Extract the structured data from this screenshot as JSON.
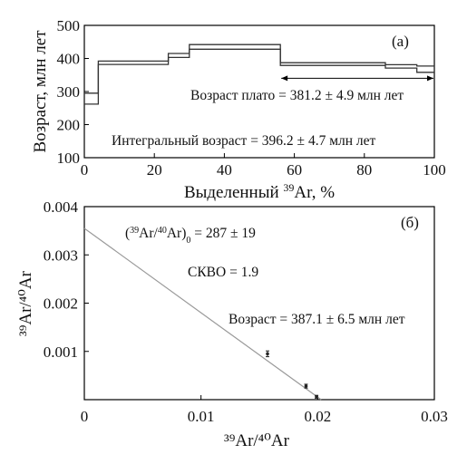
{
  "chart_data": [
    {
      "type": "line",
      "panel_label": "(a)",
      "xlabel_prefix": "Выделенный ",
      "xlabel_isotope": "39",
      "xlabel_suffix": "Ar, %",
      "ylabel": "Возраст, млн лет",
      "xlim": [
        0,
        100
      ],
      "ylim": [
        100,
        500
      ],
      "x_ticks": [
        0,
        20,
        40,
        60,
        80,
        100
      ],
      "y_ticks": [
        100,
        200,
        300,
        400,
        500
      ],
      "series": [
        {
          "steps": [
            {
              "x0": 0,
              "x1": 4,
              "y_low": 262,
              "y_high": 295
            },
            {
              "x0": 4,
              "x1": 24,
              "y_low": 382,
              "y_high": 392
            },
            {
              "x0": 24,
              "x1": 30,
              "y_low": 403,
              "y_high": 415
            },
            {
              "x0": 30,
              "x1": 56,
              "y_low": 428,
              "y_high": 442
            },
            {
              "x0": 56,
              "x1": 86,
              "y_low": 379,
              "y_high": 387
            },
            {
              "x0": 86,
              "x1": 95,
              "y_low": 371,
              "y_high": 381
            },
            {
              "x0": 95,
              "x1": 100,
              "y_low": 358,
              "y_high": 377
            }
          ]
        }
      ],
      "plateau": {
        "x0": 56,
        "x1": 100,
        "y": 340
      },
      "annotations": {
        "plateau": "Возраст плато = 381.2 ± 4.9 млн лет",
        "integral": "Интегральный возраст = 396.2 ± 4.7 млн лет"
      }
    },
    {
      "type": "scatter",
      "panel_label": "(б)",
      "xlabel": "³⁹Ar/⁴⁰Ar",
      "ylabel": "³⁹Ar/⁴⁰Ar",
      "xlim": [
        0,
        0.03
      ],
      "ylim": [
        0,
        0.004
      ],
      "x_ticks": [
        "0",
        "0.01",
        "0.02",
        "0.03"
      ],
      "y_ticks": [
        "0.001",
        "0.002",
        "0.003",
        "0.004"
      ],
      "x_tick_values": [
        0,
        0.01,
        0.02,
        0.03
      ],
      "y_tick_values": [
        0.001,
        0.002,
        0.003,
        0.004
      ],
      "points": [
        {
          "x": 0.0157,
          "y": 0.00095,
          "err": 6e-05
        },
        {
          "x": 0.019,
          "y": 0.00028,
          "err": 4e-05
        },
        {
          "x": 0.0199,
          "y": 6e-05,
          "err": 3e-05
        }
      ],
      "fit_line": {
        "x": [
          0,
          0.0203
        ],
        "y": [
          0.00355,
          0
        ]
      },
      "line_color": "#999999",
      "annotations": {
        "intercept_prefix": "(",
        "intercept_sup1": "39",
        "intercept_mid": "Ar/",
        "intercept_sup2": "40",
        "intercept_end": "Ar)",
        "intercept_sub": "0",
        "intercept_value": " = 287 ± 19",
        "mswd": "СКВО = 1.9",
        "age": "Возраст = 387.1 ± 6.5 млн лет"
      }
    }
  ]
}
